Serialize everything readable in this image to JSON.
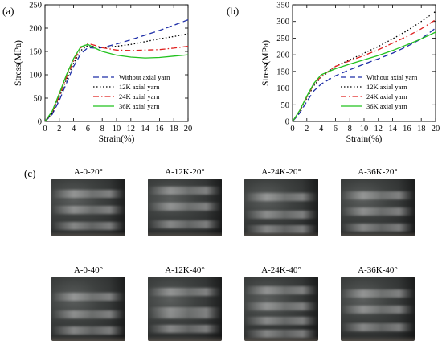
{
  "chart_data": [
    {
      "type": "line",
      "panel_label": "(a)",
      "xlabel": "Strain(%)",
      "ylabel": "Stress(MPa)",
      "xlim": [
        0,
        20
      ],
      "ylim": [
        0,
        250
      ],
      "xticks": [
        0,
        2,
        4,
        6,
        8,
        10,
        12,
        14,
        16,
        18,
        20
      ],
      "yticks": [
        0,
        50,
        100,
        150,
        200,
        250
      ],
      "grid": false,
      "legend_position": "bottom-right",
      "series": [
        {
          "name": "Without axial yarn",
          "color": "#1f2fa8",
          "dash": "dashed",
          "x": [
            0,
            1,
            2,
            3,
            4,
            5,
            6,
            7,
            8,
            10,
            12,
            14,
            16,
            18,
            20
          ],
          "y": [
            0,
            15,
            45,
            82,
            118,
            145,
            158,
            157,
            158,
            166,
            175,
            185,
            195,
            206,
            218
          ]
        },
        {
          "name": "12K axial yarn",
          "color": "#000000",
          "dash": "dotted",
          "x": [
            0,
            1,
            2,
            3,
            4,
            5,
            6,
            7,
            8,
            10,
            12,
            14,
            16,
            18,
            20
          ],
          "y": [
            0,
            18,
            52,
            90,
            125,
            152,
            163,
            160,
            158,
            161,
            165,
            171,
            177,
            182,
            188
          ]
        },
        {
          "name": "24K axial yarn",
          "color": "#e0201f",
          "dash": "dashdot",
          "x": [
            0,
            1,
            2,
            3,
            4,
            5,
            6,
            7,
            8,
            10,
            12,
            14,
            16,
            18,
            20
          ],
          "y": [
            0,
            20,
            55,
            95,
            130,
            158,
            167,
            163,
            158,
            153,
            152,
            153,
            154,
            157,
            161
          ]
        },
        {
          "name": "36K axial yarn",
          "color": "#22c21e",
          "dash": "solid",
          "x": [
            0,
            1,
            2,
            3,
            4,
            5,
            6,
            7,
            8,
            10,
            12,
            14,
            16,
            18,
            20
          ],
          "y": [
            0,
            22,
            60,
            100,
            135,
            160,
            165,
            157,
            150,
            142,
            138,
            136,
            137,
            140,
            143
          ]
        }
      ]
    },
    {
      "type": "line",
      "panel_label": "(b)",
      "xlabel": "Strain(%)",
      "ylabel": "Stress(MPa)",
      "xlim": [
        0,
        20
      ],
      "ylim": [
        0,
        350
      ],
      "xticks": [
        0,
        2,
        4,
        6,
        8,
        10,
        12,
        14,
        16,
        18,
        20
      ],
      "yticks": [
        0,
        50,
        100,
        150,
        200,
        250,
        300,
        350
      ],
      "grid": false,
      "legend_position": "bottom-right",
      "series": [
        {
          "name": "Without axial yarn",
          "color": "#1f2fa8",
          "dash": "dashed",
          "x": [
            0,
            1,
            2,
            3,
            4,
            6,
            8,
            10,
            12,
            14,
            16,
            18,
            20
          ],
          "y": [
            0,
            25,
            60,
            92,
            112,
            137,
            155,
            172,
            188,
            205,
            225,
            248,
            280
          ]
        },
        {
          "name": "12K axial yarn",
          "color": "#000000",
          "dash": "dotted",
          "x": [
            0,
            1,
            2,
            3,
            4,
            6,
            8,
            10,
            12,
            14,
            16,
            18,
            20
          ],
          "y": [
            0,
            30,
            70,
            108,
            132,
            165,
            185,
            205,
            225,
            248,
            272,
            300,
            330
          ]
        },
        {
          "name": "24K axial yarn",
          "color": "#e0201f",
          "dash": "dashdot",
          "x": [
            0,
            1,
            2,
            3,
            4,
            6,
            8,
            10,
            12,
            14,
            16,
            18,
            20
          ],
          "y": [
            0,
            32,
            74,
            112,
            135,
            165,
            182,
            198,
            215,
            235,
            255,
            278,
            305
          ]
        },
        {
          "name": "36K axial yarn",
          "color": "#22c21e",
          "dash": "solid",
          "x": [
            0,
            1,
            2,
            3,
            4,
            6,
            8,
            10,
            12,
            14,
            16,
            18,
            20
          ],
          "y": [
            0,
            33,
            76,
            115,
            140,
            158,
            172,
            185,
            198,
            213,
            230,
            248,
            268
          ]
        }
      ]
    }
  ],
  "photos": {
    "panel_label": "(c)",
    "samples": [
      "A-0-20°",
      "A-12K-20°",
      "A-24K-20°",
      "A-36K-20°",
      "A-0-40°",
      "A-12K-40°",
      "A-24K-40°",
      "A-36K-40°"
    ]
  }
}
